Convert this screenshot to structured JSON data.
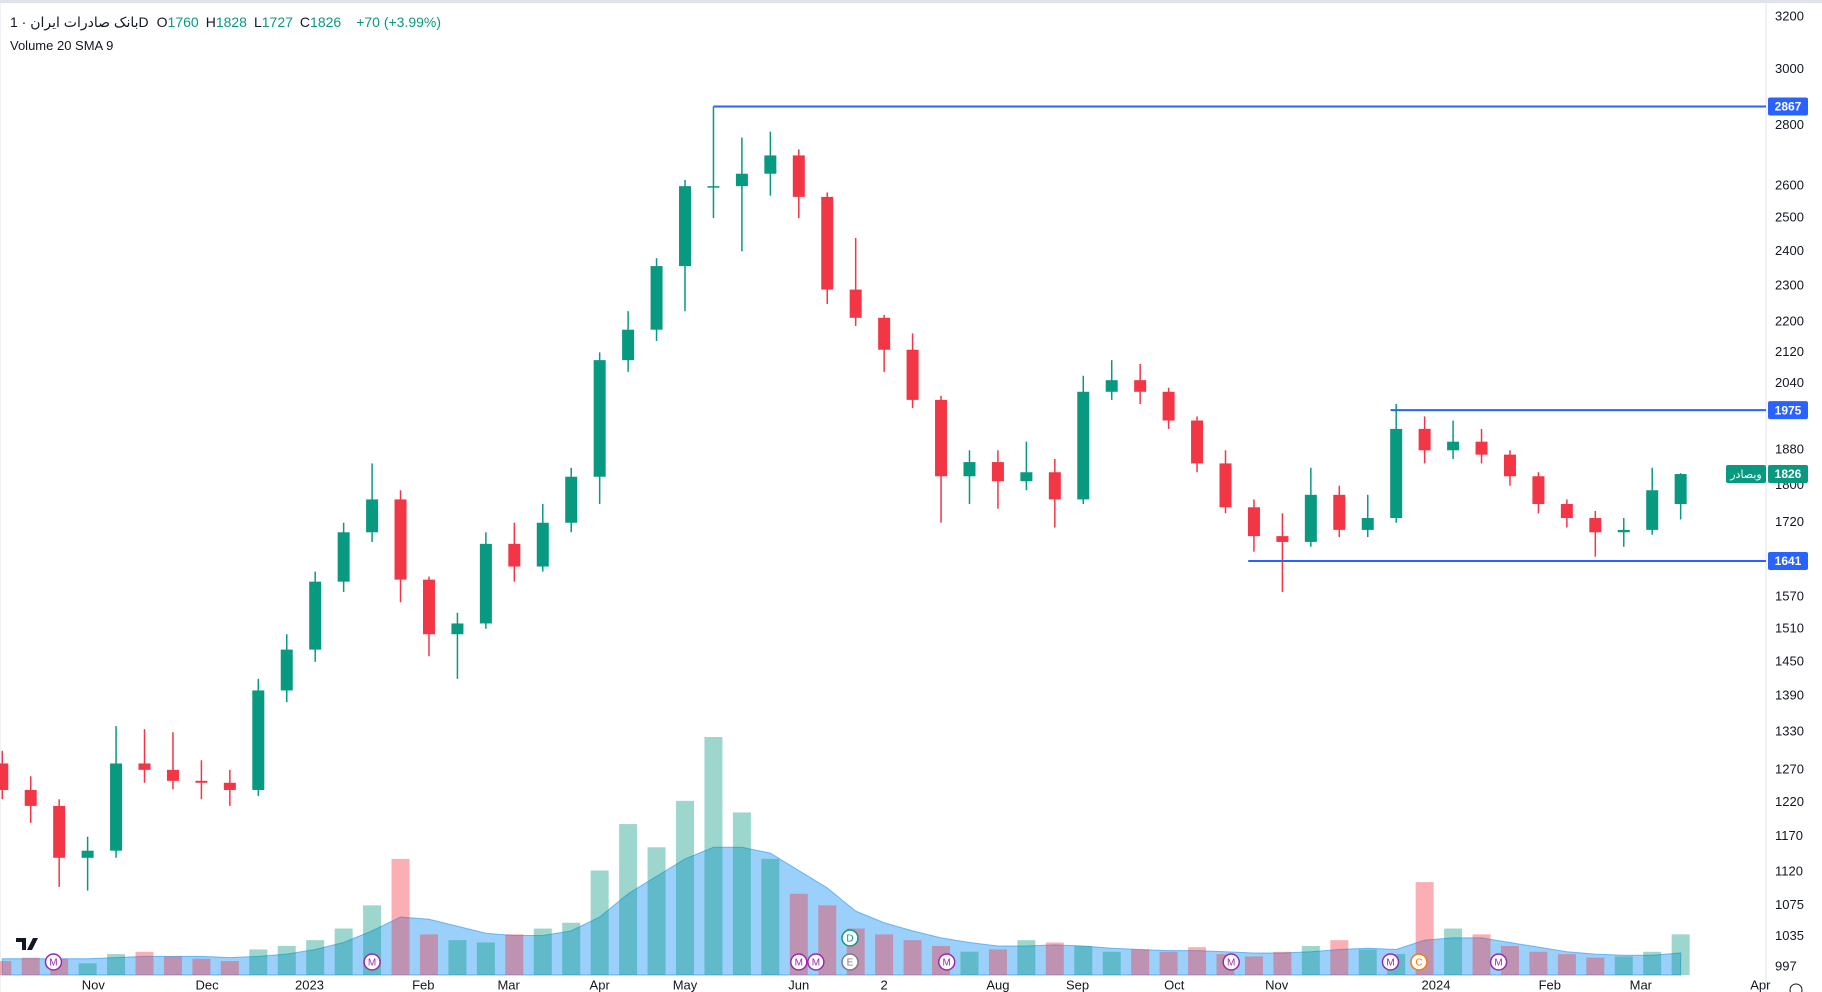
{
  "header": {
    "title": "بانک صادرات ایران · 1D",
    "ohlc": [
      {
        "label": "O",
        "value": 1760
      },
      {
        "label": "H",
        "value": 1828
      },
      {
        "label": "L",
        "value": 1727
      },
      {
        "label": "C",
        "value": 1826
      }
    ],
    "change": "+70 (+3.99%)",
    "indicator": "Volume 20 SMA 9"
  },
  "chart_data": {
    "type": "candlestick",
    "log_scale": true,
    "grid": false,
    "up_color": "#089981",
    "down_color": "#f23645",
    "sma_color": "#2196f3",
    "line_color": "#2962ff",
    "ylim": [
      997,
      3200
    ],
    "yticks": [
      997,
      1035,
      1075,
      1120,
      1170,
      1220,
      1270,
      1330,
      1390,
      1450,
      1510,
      1570,
      1720,
      1800,
      1880,
      2040,
      2120,
      2200,
      2300,
      2400,
      2500,
      2600,
      2800,
      3000,
      3200
    ],
    "xlim": [
      -0.4,
      310
    ],
    "xticks": [
      {
        "value": 16,
        "label": "Nov"
      },
      {
        "value": 36,
        "label": "Dec"
      },
      {
        "value": 54,
        "label": "2023"
      },
      {
        "value": 74,
        "label": "Feb"
      },
      {
        "value": 89,
        "label": "Mar"
      },
      {
        "value": 105,
        "label": "Apr"
      },
      {
        "value": 120,
        "label": "May"
      },
      {
        "value": 140,
        "label": "Jun"
      },
      {
        "value": 155,
        "label": "2"
      },
      {
        "value": 175,
        "label": "Aug"
      },
      {
        "value": 189,
        "label": "Sep"
      },
      {
        "value": 206,
        "label": "Oct"
      },
      {
        "value": 224,
        "label": "Nov"
      },
      {
        "value": 252,
        "label": "2024"
      },
      {
        "value": 272,
        "label": "Feb"
      },
      {
        "value": 288,
        "label": "Mar"
      },
      {
        "value": 309,
        "label": "Apr"
      }
    ],
    "x": [
      0,
      5,
      10,
      15,
      20,
      25,
      30,
      35,
      40,
      45,
      50,
      55,
      60,
      65,
      70,
      75,
      80,
      85,
      90,
      95,
      100,
      105,
      110,
      115,
      120,
      125,
      130,
      135,
      140,
      145,
      150,
      155,
      160,
      165,
      170,
      175,
      180,
      185,
      190,
      195,
      200,
      205,
      210,
      215,
      220,
      225,
      230,
      235,
      240,
      245,
      250,
      255,
      260,
      265,
      270,
      275,
      280,
      285,
      290,
      295
    ],
    "open": [
      1280,
      1239,
      1215,
      1140,
      1150,
      1280,
      1270,
      1253,
      1250,
      1239,
      1400,
      1472,
      1600,
      1700,
      1770,
      1604,
      1500,
      1520,
      1676,
      1630,
      1720,
      1820,
      2100,
      2180,
      2357,
      2600,
      2600,
      2640,
      2700,
      2566,
      2290,
      2212,
      2127,
      2000,
      1821,
      1853,
      1810,
      1830,
      1770,
      2020,
      2049,
      2020,
      1950,
      1850,
      1753,
      1692,
      1680,
      1780,
      1705,
      1730,
      1930,
      1880,
      1900,
      1870,
      1821,
      1760,
      1730,
      1700,
      1705,
      1760
    ],
    "high": [
      1300,
      1260,
      1225,
      1170,
      1340,
      1335,
      1330,
      1285,
      1270,
      1420,
      1500,
      1620,
      1720,
      1850,
      1790,
      1610,
      1540,
      1700,
      1720,
      1760,
      1840,
      2120,
      2230,
      2380,
      2620,
      2867,
      2760,
      2780,
      2720,
      2580,
      2440,
      2220,
      2170,
      2010,
      1880,
      1880,
      1900,
      1860,
      2060,
      2100,
      2090,
      2030,
      1960,
      1880,
      1770,
      1740,
      1840,
      1800,
      1780,
      1990,
      1960,
      1950,
      1930,
      1880,
      1830,
      1770,
      1745,
      1730,
      1840,
      1828
    ],
    "low": [
      1225,
      1190,
      1100,
      1095,
      1140,
      1250,
      1240,
      1225,
      1215,
      1230,
      1380,
      1450,
      1580,
      1680,
      1560,
      1460,
      1420,
      1510,
      1600,
      1620,
      1700,
      1760,
      2070,
      2150,
      2230,
      2500,
      2400,
      2570,
      2500,
      2250,
      2190,
      2070,
      1980,
      1720,
      1760,
      1750,
      1790,
      1710,
      1760,
      2000,
      1990,
      1930,
      1830,
      1740,
      1660,
      1580,
      1670,
      1690,
      1690,
      1720,
      1850,
      1860,
      1850,
      1800,
      1740,
      1710,
      1650,
      1670,
      1695,
      1727
    ],
    "close": [
      1239,
      1215,
      1140,
      1150,
      1280,
      1270,
      1253,
      1250,
      1239,
      1400,
      1472,
      1600,
      1700,
      1770,
      1604,
      1500,
      1520,
      1676,
      1630,
      1720,
      1820,
      2100,
      2180,
      2357,
      2600,
      2600,
      2640,
      2700,
      2566,
      2290,
      2212,
      2127,
      2000,
      1821,
      1853,
      1810,
      1830,
      1770,
      2020,
      2049,
      2020,
      1950,
      1850,
      1753,
      1692,
      1680,
      1780,
      1705,
      1730,
      1930,
      1880,
      1900,
      1870,
      1821,
      1760,
      1730,
      1700,
      1705,
      1790,
      1826
    ],
    "volume": [
      12,
      15,
      14,
      10,
      18,
      20,
      16,
      14,
      12,
      22,
      25,
      30,
      40,
      60,
      100,
      35,
      30,
      28,
      35,
      40,
      45,
      90,
      130,
      110,
      150,
      205,
      140,
      100,
      70,
      60,
      40,
      35,
      30,
      25,
      20,
      22,
      30,
      28,
      25,
      20,
      22,
      20,
      24,
      18,
      16,
      20,
      25,
      30,
      22,
      18,
      80,
      40,
      35,
      25,
      20,
      18,
      15,
      16,
      20,
      35
    ],
    "volume_sma": [
      14,
      14,
      14,
      14,
      15,
      16,
      16,
      16,
      15,
      16,
      18,
      22,
      28,
      38,
      50,
      48,
      42,
      36,
      34,
      34,
      38,
      50,
      70,
      85,
      100,
      110,
      110,
      105,
      90,
      75,
      55,
      45,
      38,
      32,
      28,
      25,
      25,
      26,
      25,
      23,
      22,
      21,
      21,
      20,
      19,
      19,
      20,
      22,
      23,
      22,
      30,
      32,
      32,
      28,
      24,
      20,
      18,
      17,
      17,
      19
    ],
    "price_lines": [
      {
        "value": 2867,
        "x": 125
      },
      {
        "value": 1975,
        "x": 244
      },
      {
        "value": 1641,
        "x": 219
      }
    ],
    "last": {
      "value": 1826,
      "name": "وبصادر"
    },
    "events": [
      {
        "label": "M",
        "x": 9
      },
      {
        "label": "M",
        "x": 65
      },
      {
        "label": "M",
        "x": 140
      },
      {
        "label": "M",
        "x": 143
      },
      {
        "label": "D",
        "x": 149
      },
      {
        "label": "E",
        "x": 149
      },
      {
        "label": "M",
        "x": 166
      },
      {
        "label": "M",
        "x": 216
      },
      {
        "label": "M",
        "x": 244
      },
      {
        "label": "C",
        "x": 249
      },
      {
        "label": "M",
        "x": 263
      }
    ]
  }
}
